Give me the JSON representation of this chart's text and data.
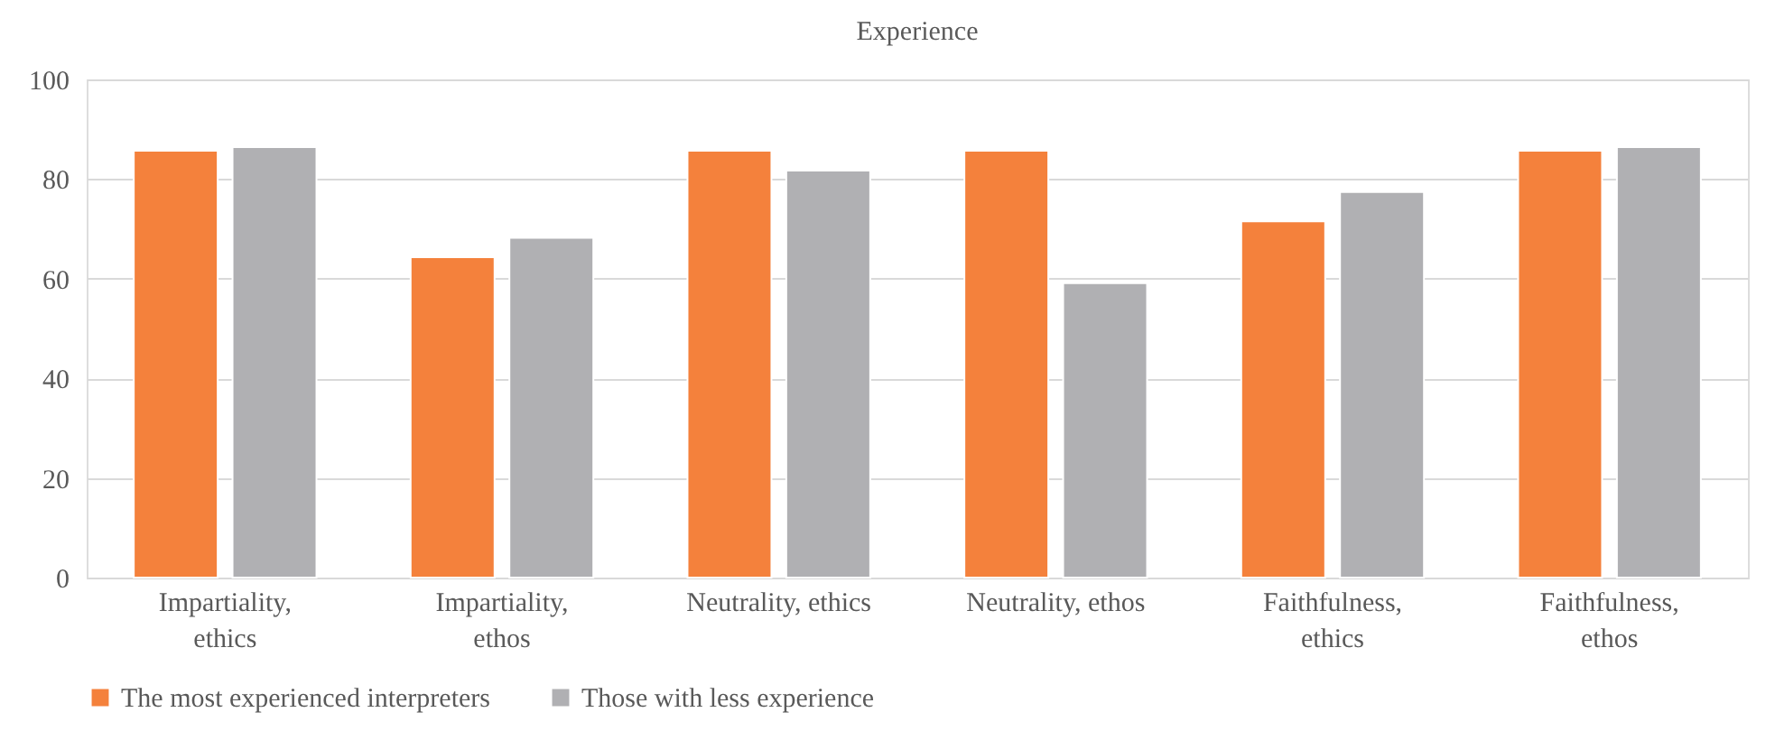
{
  "chart_data": {
    "type": "bar",
    "title": "Experience",
    "categories": [
      "Impartiality, ethics",
      "Impartiality, ethos",
      "Neutrality, ethics",
      "Neutrality, ethos",
      "Faithfulness, ethics",
      "Faithfulness, ethos"
    ],
    "series": [
      {
        "name": "The most experienced interpreters",
        "color": "#f4813c",
        "values": [
          85.7,
          64.3,
          85.7,
          85.7,
          71.5,
          85.7
        ]
      },
      {
        "name": "Those with less experience",
        "color": "#b0b0b3",
        "values": [
          86.4,
          68.2,
          81.7,
          59.1,
          77.4,
          86.4
        ]
      }
    ],
    "ylim": [
      0,
      100
    ],
    "yticks": [
      0,
      20,
      40,
      60,
      80,
      100
    ],
    "grid": "y",
    "legend": "bottom"
  }
}
